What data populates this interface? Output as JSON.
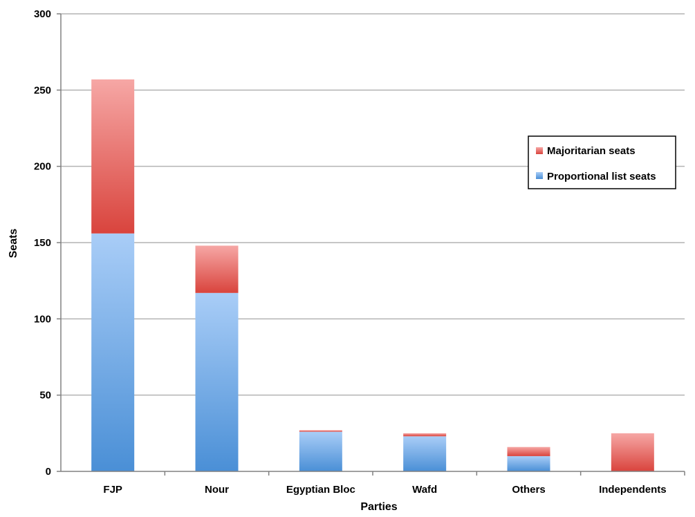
{
  "chart_data": {
    "type": "bar",
    "stacked": true,
    "title": "",
    "xlabel": "Parties",
    "ylabel": "Seats",
    "ylim": [
      0,
      300
    ],
    "yticks": [
      "0",
      "50",
      "100",
      "150",
      "200",
      "250",
      "300"
    ],
    "categories": [
      "FJP",
      "Nour",
      "Egyptian Bloc",
      "Wafd",
      "Others",
      "Independents"
    ],
    "series": [
      {
        "name": "Proportional list seats",
        "color": "#5b9bdc",
        "values": [
          156,
          117,
          26,
          23,
          10,
          0
        ]
      },
      {
        "name": "Majoritarian seats",
        "color": "#e0504a",
        "values": [
          101,
          31,
          1,
          2,
          6,
          25
        ]
      }
    ],
    "legend": {
      "position": "right",
      "entries": [
        "Majoritarian seats",
        "Proportional list seats"
      ]
    },
    "grid": true
  }
}
